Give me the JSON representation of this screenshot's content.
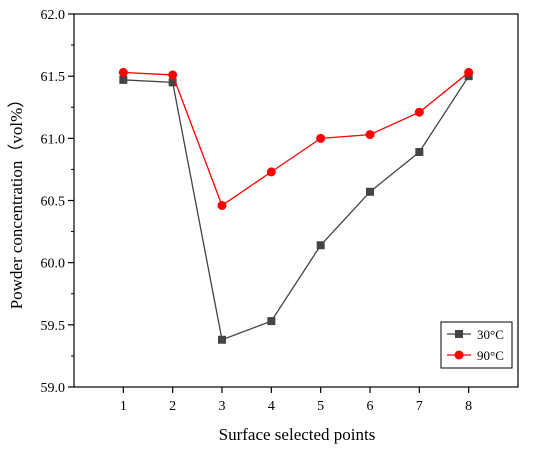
{
  "chart_data": {
    "type": "line",
    "title": "",
    "xlabel": "Surface selected points",
    "ylabel": "Powder concentration（vol%）",
    "x": [
      1,
      2,
      3,
      4,
      5,
      6,
      7,
      8
    ],
    "xlim": [
      0,
      9
    ],
    "ylim": [
      59.0,
      62.0
    ],
    "xticks": [
      "1",
      "2",
      "3",
      "4",
      "5",
      "6",
      "7",
      "8"
    ],
    "yticks": [
      "59.0",
      "59.5",
      "60.0",
      "60.5",
      "61.0",
      "61.5",
      "62.0"
    ],
    "grid": false,
    "legend_position": "bottom-right",
    "series": [
      {
        "name": "30°C",
        "color": "#444444",
        "marker": "square",
        "values": [
          61.47,
          61.45,
          59.38,
          59.53,
          60.14,
          60.57,
          60.89,
          61.5
        ]
      },
      {
        "name": "90°C",
        "color": "#ff0000",
        "marker": "circle",
        "values": [
          61.53,
          61.51,
          60.46,
          60.73,
          61.0,
          61.03,
          61.21,
          61.53
        ]
      }
    ]
  }
}
